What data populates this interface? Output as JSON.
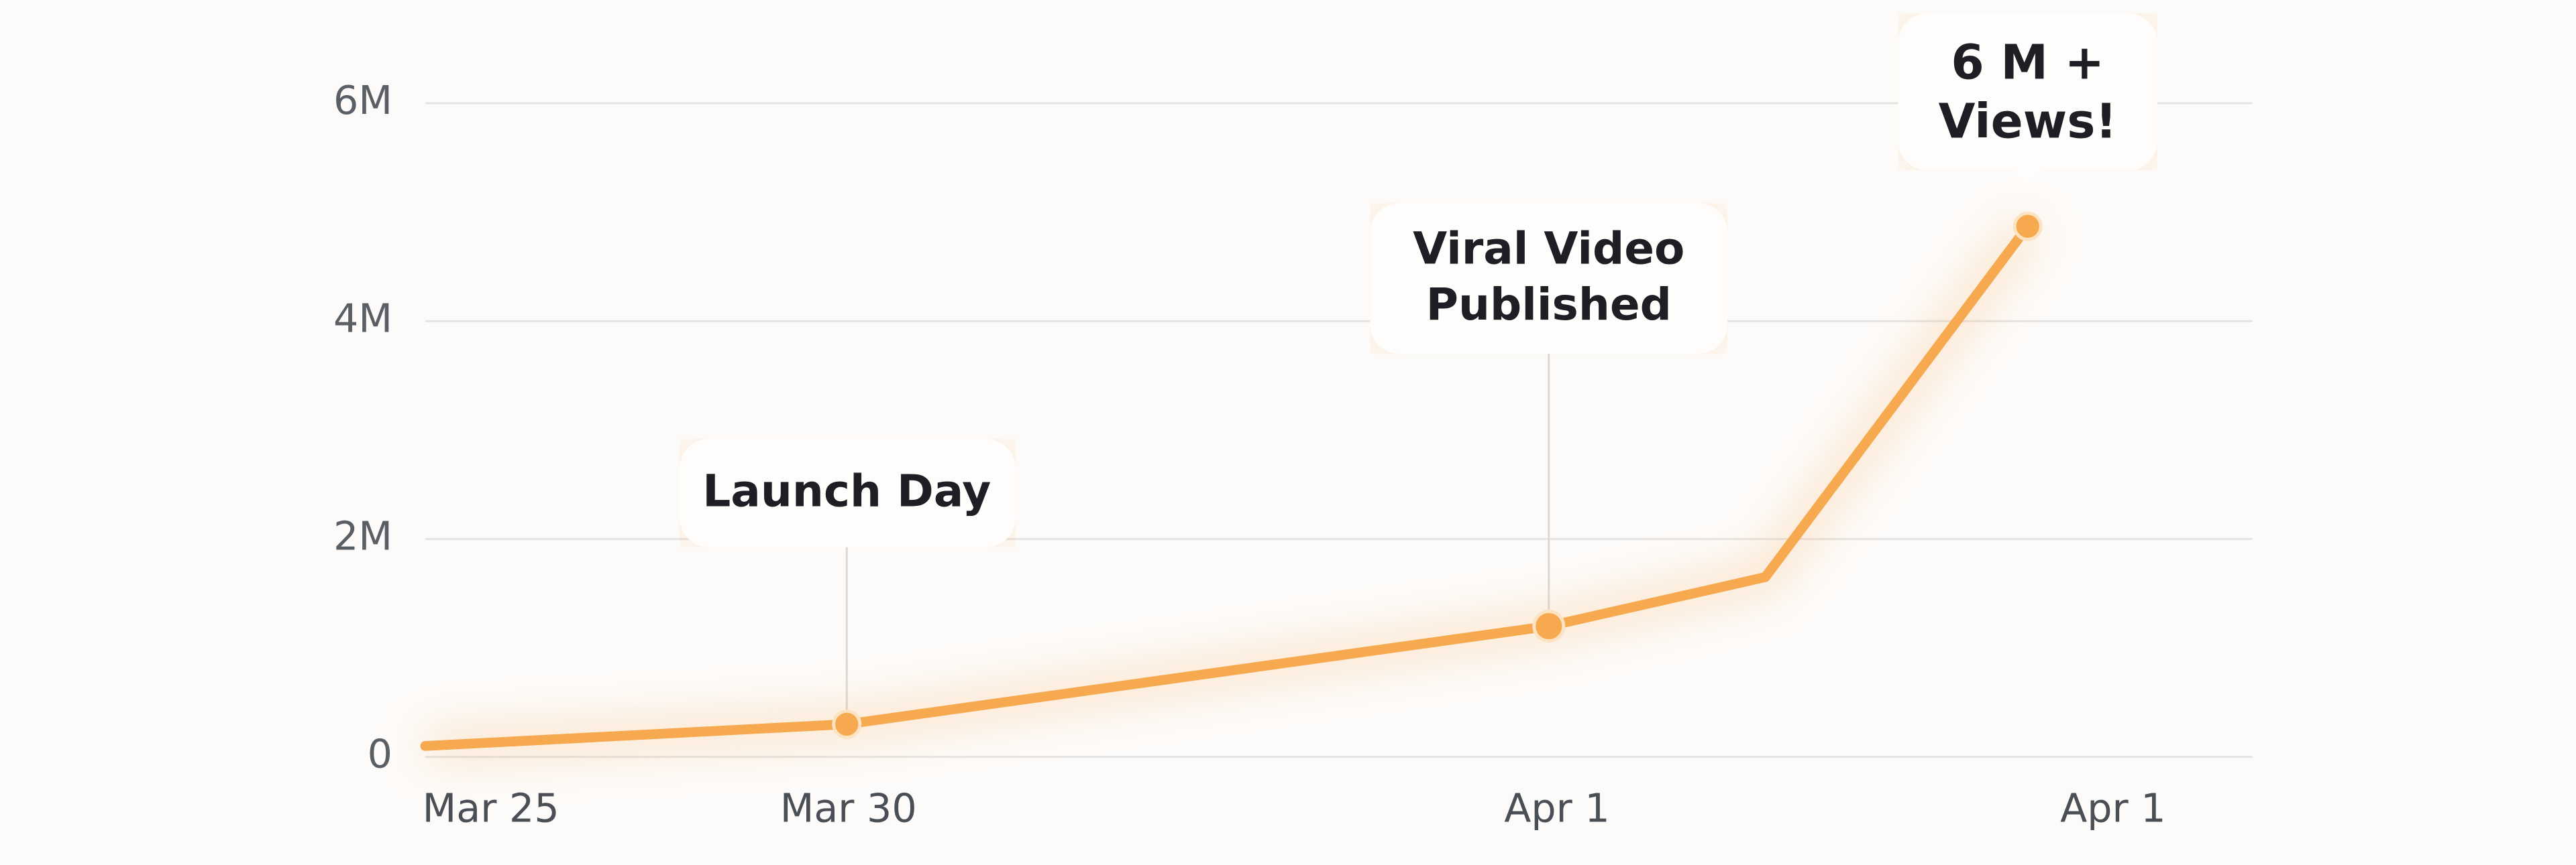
{
  "chart_data": {
    "type": "line",
    "categories": [
      "Mar 25",
      "Mar 30",
      "Apr 1",
      null,
      null,
      "Apr 1"
    ],
    "values": [
      100000,
      300000,
      1200000,
      1650000,
      4870000,
      null
    ],
    "color": "#f7a94f",
    "ylim": [
      0,
      6000000
    ],
    "yticks": [
      0,
      {
        "value": 2000000,
        "label": "2M"
      },
      {
        "value": 4000000,
        "label": "4M"
      },
      {
        "value": 6000000,
        "label": "6M"
      }
    ],
    "grid": true,
    "annotations": [
      "Launch Day",
      "Viral Video Published",
      "6 M + Views!"
    ]
  }
}
